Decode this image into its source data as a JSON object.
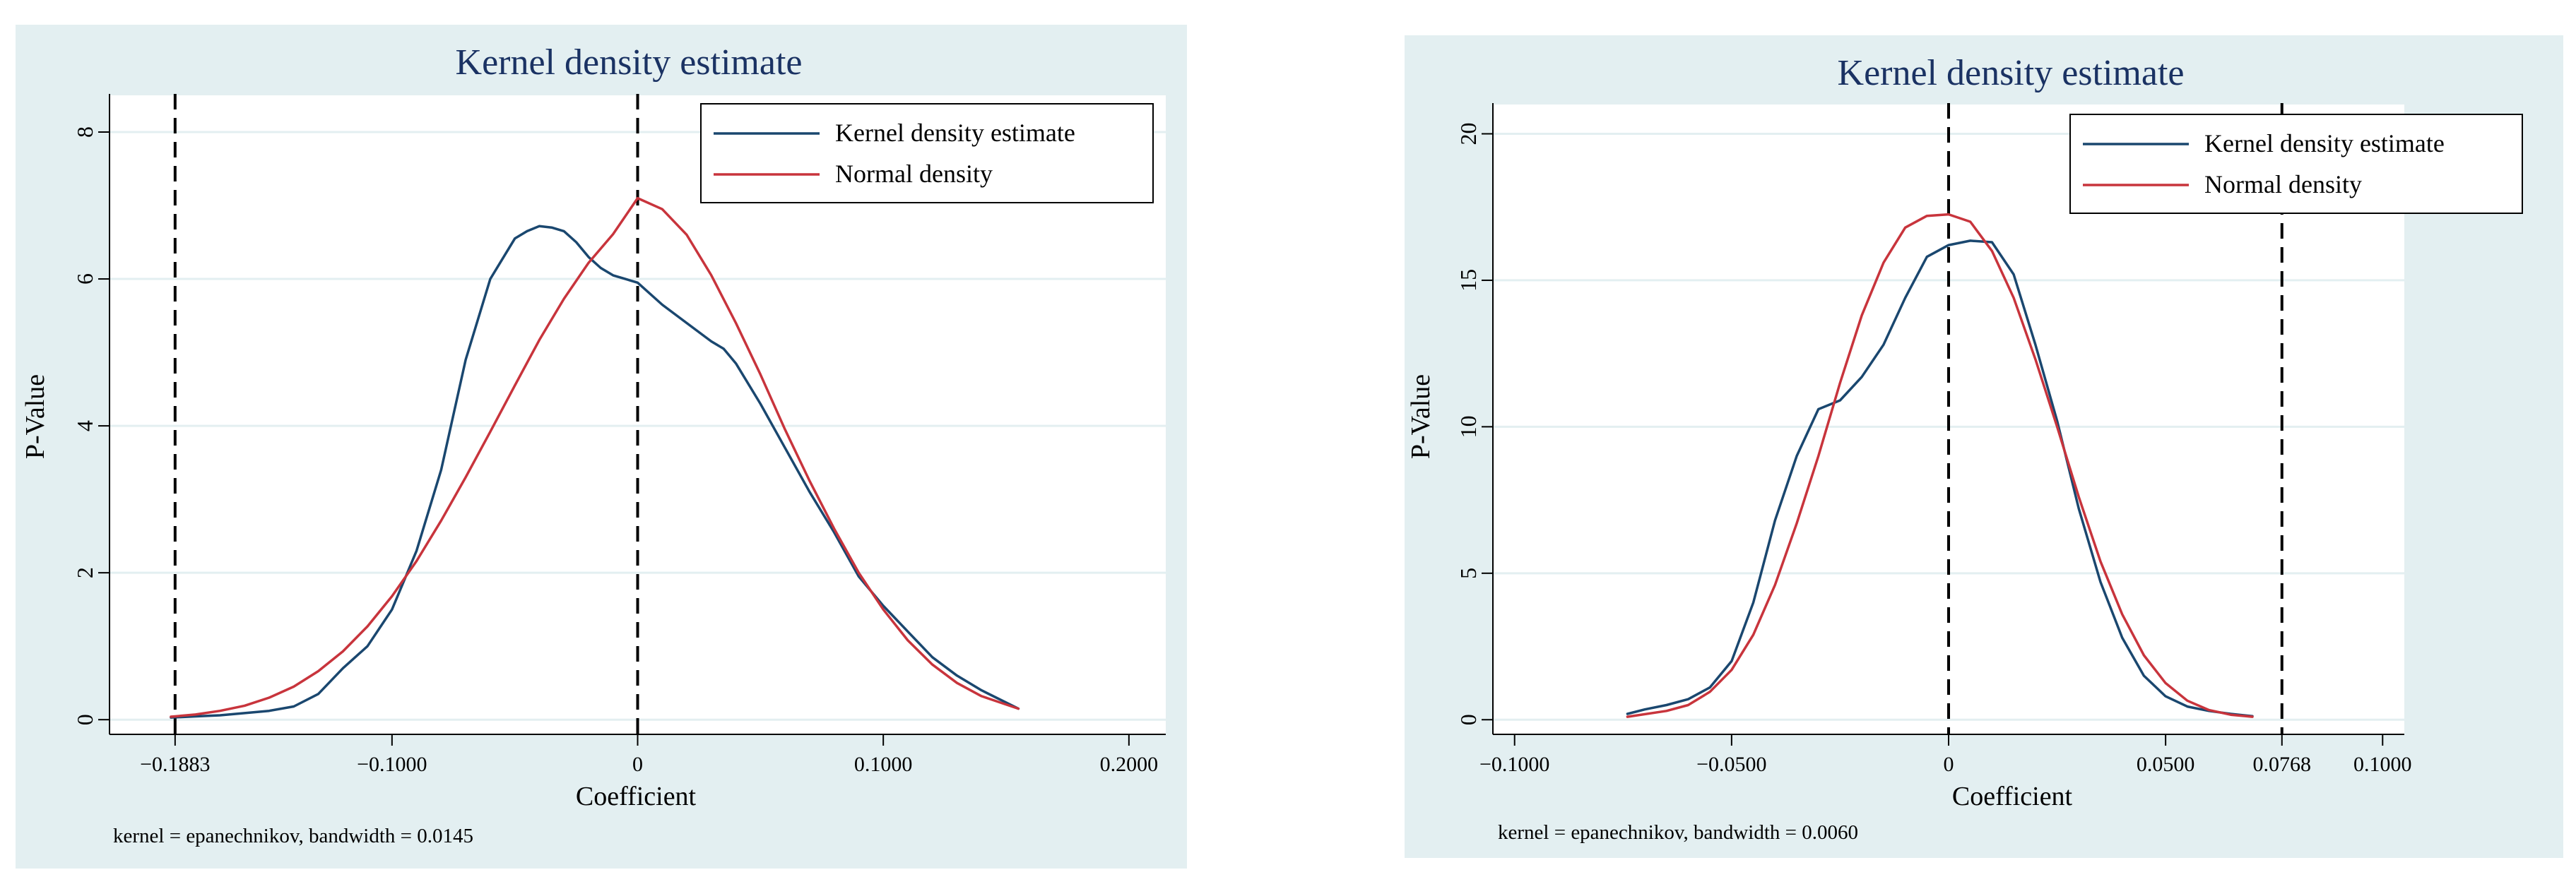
{
  "colors": {
    "outer_background": "#e3eff1",
    "plot_background": "#ffffff",
    "title_color": "#1a3263",
    "grid_color": "#e3eff1",
    "kernel_color": "#1a476f",
    "normal_color": "#c8343c",
    "reference_line_color": "#000000",
    "axis_color": "#000000"
  },
  "chart_data": [
    {
      "type": "line",
      "title": "Kernel density estimate",
      "xlabel": "Coefficient",
      "ylabel": "P-Value",
      "note": "kernel = epanechnikov, bandwidth = 0.0145",
      "xlim": [
        -0.215,
        0.215
      ],
      "ylim": [
        -0.2,
        8.5
      ],
      "x_ticks": [
        {
          "value": -0.1883,
          "label": "−0.1883"
        },
        {
          "value": -0.1,
          "label": "−0.1000"
        },
        {
          "value": 0,
          "label": "0"
        },
        {
          "value": 0.1,
          "label": "0.1000"
        },
        {
          "value": 0.2,
          "label": "0.2000"
        }
      ],
      "y_ticks": [
        {
          "value": 0,
          "label": "0"
        },
        {
          "value": 2,
          "label": "2"
        },
        {
          "value": 4,
          "label": "4"
        },
        {
          "value": 6,
          "label": "6"
        },
        {
          "value": 8,
          "label": "8"
        }
      ],
      "reference_lines": [
        -0.1883,
        0
      ],
      "legend_position": "top-right",
      "series": [
        {
          "name": "Kernel density estimate",
          "x": [
            -0.19,
            -0.17,
            -0.15,
            -0.14,
            -0.13,
            -0.12,
            -0.11,
            -0.1,
            -0.09,
            -0.08,
            -0.07,
            -0.06,
            -0.05,
            -0.045,
            -0.04,
            -0.035,
            -0.03,
            -0.025,
            -0.02,
            -0.015,
            -0.01,
            -0.005,
            0,
            0.01,
            0.02,
            0.03,
            0.035,
            0.04,
            0.05,
            0.06,
            0.07,
            0.08,
            0.09,
            0.1,
            0.11,
            0.12,
            0.13,
            0.14,
            0.155
          ],
          "y": [
            0.03,
            0.06,
            0.12,
            0.18,
            0.35,
            0.7,
            1.0,
            1.5,
            2.3,
            3.4,
            4.9,
            6.0,
            6.55,
            6.65,
            6.72,
            6.7,
            6.65,
            6.5,
            6.3,
            6.15,
            6.05,
            6.0,
            5.95,
            5.65,
            5.4,
            5.15,
            5.05,
            4.85,
            4.3,
            3.7,
            3.1,
            2.55,
            1.95,
            1.55,
            1.2,
            0.85,
            0.6,
            0.4,
            0.15
          ]
        },
        {
          "name": "Normal density",
          "x": [
            -0.19,
            -0.18,
            -0.17,
            -0.16,
            -0.15,
            -0.14,
            -0.13,
            -0.12,
            -0.11,
            -0.1,
            -0.09,
            -0.08,
            -0.07,
            -0.06,
            -0.05,
            -0.04,
            -0.03,
            -0.02,
            -0.01,
            0,
            0.01,
            0.02,
            0.03,
            0.04,
            0.05,
            0.06,
            0.07,
            0.08,
            0.09,
            0.1,
            0.11,
            0.12,
            0.13,
            0.14,
            0.155
          ],
          "y": [
            0.04,
            0.07,
            0.12,
            0.19,
            0.3,
            0.45,
            0.66,
            0.93,
            1.27,
            1.68,
            2.16,
            2.71,
            3.3,
            3.92,
            4.55,
            5.17,
            5.73,
            6.22,
            6.61,
            7.1,
            6.95,
            6.6,
            6.05,
            5.4,
            4.7,
            3.95,
            3.25,
            2.6,
            2.0,
            1.5,
            1.08,
            0.75,
            0.5,
            0.32,
            0.15
          ]
        }
      ]
    },
    {
      "type": "line",
      "title": "Kernel density estimate",
      "xlabel": "Coefficient",
      "ylabel": "P-Value",
      "note": "kernel = epanechnikov, bandwidth = 0.0060",
      "xlim": [
        -0.105,
        0.105
      ],
      "ylim": [
        -0.5,
        21
      ],
      "x_ticks": [
        {
          "value": -0.1,
          "label": "−0.1000"
        },
        {
          "value": -0.05,
          "label": "−0.0500"
        },
        {
          "value": 0,
          "label": "0"
        },
        {
          "value": 0.05,
          "label": "0.0500"
        },
        {
          "value": 0.0768,
          "label": "0.0768"
        },
        {
          "value": 0.1,
          "label": "0.1000"
        }
      ],
      "y_ticks": [
        {
          "value": 0,
          "label": "0"
        },
        {
          "value": 5,
          "label": "5"
        },
        {
          "value": 10,
          "label": "10"
        },
        {
          "value": 15,
          "label": "15"
        },
        {
          "value": 20,
          "label": "20"
        }
      ],
      "reference_lines": [
        0,
        0.0768
      ],
      "legend_position": "top-right",
      "series": [
        {
          "name": "Kernel density estimate",
          "x": [
            -0.074,
            -0.07,
            -0.065,
            -0.06,
            -0.055,
            -0.05,
            -0.045,
            -0.04,
            -0.035,
            -0.03,
            -0.025,
            -0.02,
            -0.015,
            -0.01,
            -0.005,
            0,
            0.005,
            0.01,
            0.015,
            0.02,
            0.025,
            0.03,
            0.035,
            0.04,
            0.045,
            0.05,
            0.055,
            0.06,
            0.065,
            0.07
          ],
          "y": [
            0.2,
            0.35,
            0.5,
            0.7,
            1.1,
            2.0,
            4.0,
            6.8,
            9.0,
            10.6,
            10.9,
            11.7,
            12.8,
            14.4,
            15.8,
            16.2,
            16.35,
            16.3,
            15.2,
            12.8,
            10.2,
            7.2,
            4.7,
            2.8,
            1.5,
            0.8,
            0.45,
            0.3,
            0.2,
            0.12
          ]
        },
        {
          "name": "Normal density",
          "x": [
            -0.074,
            -0.065,
            -0.06,
            -0.055,
            -0.05,
            -0.045,
            -0.04,
            -0.035,
            -0.03,
            -0.025,
            -0.02,
            -0.015,
            -0.01,
            -0.005,
            0,
            0.005,
            0.01,
            0.015,
            0.02,
            0.025,
            0.03,
            0.035,
            0.04,
            0.045,
            0.05,
            0.055,
            0.06,
            0.065,
            0.07
          ],
          "y": [
            0.1,
            0.3,
            0.5,
            0.95,
            1.7,
            2.9,
            4.6,
            6.7,
            9.0,
            11.5,
            13.8,
            15.6,
            16.8,
            17.2,
            17.25,
            17.0,
            16.0,
            14.4,
            12.3,
            10.0,
            7.6,
            5.4,
            3.6,
            2.2,
            1.25,
            0.65,
            0.33,
            0.17,
            0.1
          ]
        }
      ]
    }
  ]
}
